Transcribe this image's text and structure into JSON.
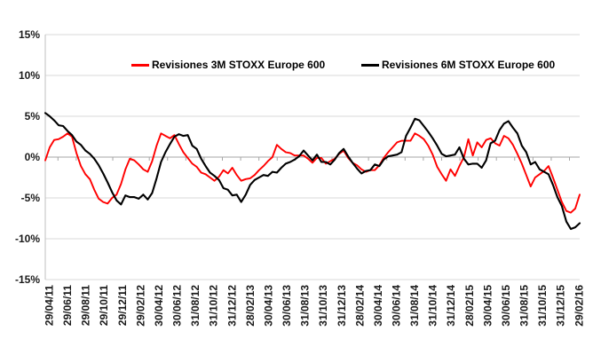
{
  "figure": {
    "background": "#FFFFFF",
    "title": ""
  },
  "chart_data": {
    "type": "line",
    "title": "",
    "xlabel": "",
    "ylabel": "",
    "ylim": [
      -15,
      15
    ],
    "y_unit": "%",
    "grid": "horizontal",
    "legend_position": "top-inside",
    "x_start_label": "29/04/11",
    "x_end_label": "29/02/16",
    "x_tick_labels": [
      "29/04/11",
      "29/06/11",
      "29/08/11",
      "29/10/11",
      "29/12/11",
      "29/02/12",
      "30/04/12",
      "30/06/12",
      "31/08/12",
      "31/10/12",
      "31/12/12",
      "28/02/13",
      "30/04/13",
      "30/06/13",
      "31/08/13",
      "31/10/13",
      "31/12/13",
      "28/02/14",
      "30/04/14",
      "30/06/14",
      "31/08/14",
      "31/10/14",
      "31/12/14",
      "28/02/15",
      "30/04/15",
      "30/06/15",
      "31/08/15",
      "31/10/15",
      "31/12/15",
      "29/02/16"
    ],
    "y_ticks": [
      {
        "label": "15%",
        "value": 15
      },
      {
        "label": "10%",
        "value": 10
      },
      {
        "label": "5%",
        "value": 5
      },
      {
        "label": "0%",
        "value": 0
      },
      {
        "label": "-5%",
        "value": -5
      },
      {
        "label": "-10%",
        "value": -10
      },
      {
        "label": "-15%",
        "value": -15
      }
    ],
    "colors": {
      "grid": "#D9D9D9",
      "zero_axis": "#A6A6A6",
      "axis": "#BFBFBF",
      "text": "#1A1A1A",
      "series_3m": "#FF0000",
      "series_6m": "#000000"
    },
    "n_points": 121,
    "series": [
      {
        "name": "Revisiones 3M STOXX Europe 600",
        "color": "#FF0000",
        "values": [
          -0.4,
          1.2,
          2.1,
          2.2,
          2.5,
          2.9,
          2.5,
          0.5,
          -1.1,
          -2.1,
          -2.7,
          -4.0,
          -5.1,
          -5.5,
          -5.7,
          -5.0,
          -4.6,
          -3.3,
          -1.5,
          -0.2,
          -0.4,
          -0.9,
          -1.5,
          -1.8,
          -0.5,
          1.4,
          2.9,
          2.6,
          2.3,
          2.7,
          1.6,
          0.6,
          -0.1,
          -0.8,
          -1.2,
          -1.9,
          -2.1,
          -2.5,
          -2.9,
          -2.4,
          -1.6,
          -2.0,
          -1.3,
          -2.2,
          -2.9,
          -2.7,
          -2.6,
          -2.2,
          -1.6,
          -1.1,
          -0.5,
          0.0,
          1.5,
          1.0,
          0.6,
          0.5,
          0.2,
          0.2,
          0.2,
          -0.2,
          -0.7,
          -0.1,
          -0.1,
          -0.8,
          -0.5,
          -0.2,
          0.4,
          0.8,
          -0.1,
          -0.7,
          -1.0,
          -1.5,
          -1.8,
          -1.6,
          -1.6,
          -1.0,
          -0.1,
          0.6,
          1.2,
          1.8,
          2.0,
          2.0,
          2.0,
          2.9,
          2.6,
          2.2,
          1.4,
          0.3,
          -1.2,
          -2.1,
          -2.9,
          -1.5,
          -2.3,
          -1.1,
          0.0,
          2.2,
          0.2,
          1.8,
          1.2,
          2.1,
          2.3,
          1.7,
          1.4,
          2.6,
          2.3,
          1.5,
          0.4,
          -0.8,
          -2.2,
          -3.6,
          -2.5,
          -2.1,
          -1.7,
          -1.1,
          -2.5,
          -4.0,
          -5.5,
          -6.6,
          -6.8,
          -6.3,
          -4.6
        ]
      },
      {
        "name": "Revisiones 6M STOXX Europe 600",
        "color": "#000000",
        "values": [
          5.4,
          5.0,
          4.5,
          3.9,
          3.8,
          3.2,
          2.7,
          1.9,
          1.5,
          0.8,
          0.4,
          -0.2,
          -1.0,
          -2.0,
          -3.1,
          -4.3,
          -5.3,
          -5.8,
          -4.7,
          -4.9,
          -4.9,
          -5.1,
          -4.6,
          -5.2,
          -4.4,
          -2.6,
          -0.6,
          0.6,
          1.6,
          2.5,
          2.8,
          2.6,
          2.7,
          1.4,
          1.0,
          -0.2,
          -1.1,
          -1.9,
          -2.3,
          -2.8,
          -3.8,
          -4.0,
          -4.7,
          -4.6,
          -5.5,
          -4.6,
          -3.4,
          -2.8,
          -2.5,
          -2.2,
          -2.3,
          -1.8,
          -1.9,
          -1.3,
          -0.8,
          -0.6,
          -0.3,
          0.1,
          0.8,
          0.2,
          -0.4,
          0.3,
          -0.6,
          -0.6,
          -0.9,
          -0.3,
          0.5,
          1.0,
          0.1,
          -0.7,
          -1.4,
          -2.0,
          -1.7,
          -1.6,
          -0.9,
          -1.1,
          -0.3,
          0.1,
          0.2,
          0.3,
          0.6,
          2.6,
          3.6,
          4.7,
          4.5,
          3.8,
          3.1,
          2.3,
          1.4,
          0.4,
          0.1,
          0.2,
          0.3,
          1.2,
          -0.2,
          -0.9,
          -0.8,
          -0.8,
          -1.3,
          -0.4,
          1.7,
          2.0,
          3.3,
          4.1,
          4.4,
          3.6,
          2.9,
          1.4,
          0.6,
          -0.9,
          -0.6,
          -1.5,
          -1.8,
          -2.1,
          -3.4,
          -4.9,
          -6.0,
          -7.9,
          -8.8,
          -8.6,
          -8.1
        ]
      }
    ]
  }
}
